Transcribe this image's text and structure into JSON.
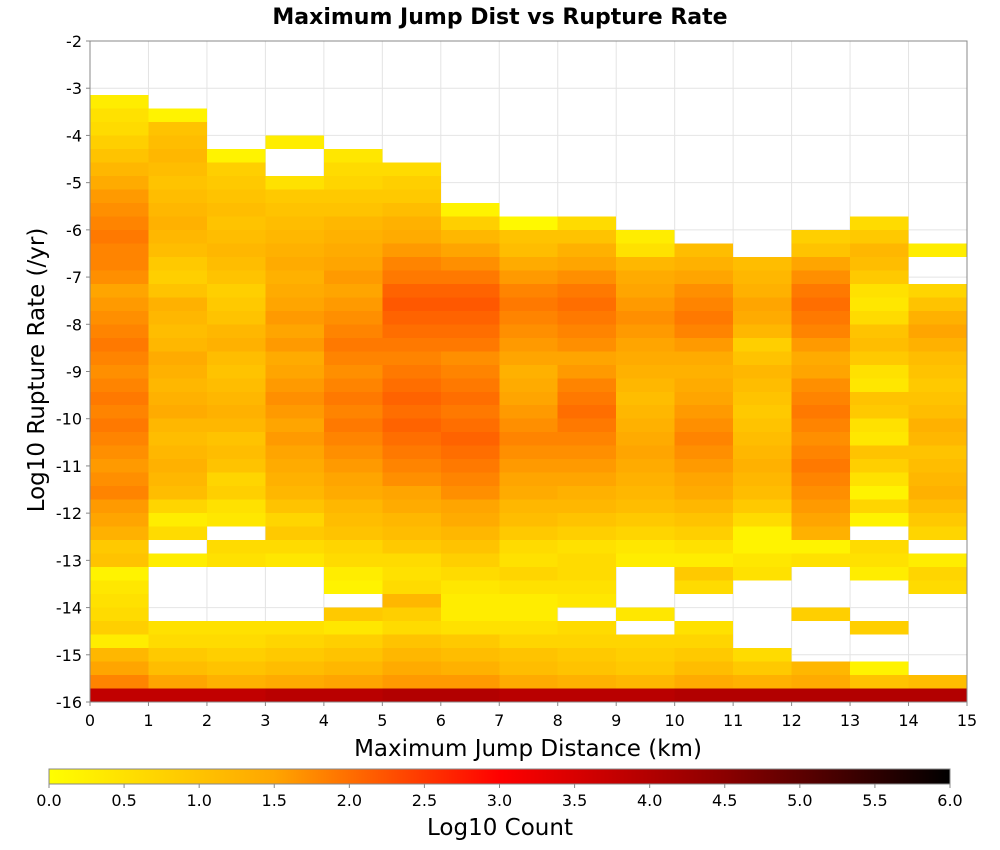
{
  "chart_data": {
    "type": "heatmap",
    "title": "Maximum Jump Dist vs Rupture Rate",
    "xlabel": "Maximum Jump Distance (km)",
    "ylabel": "Log10 Rupture Rate (/yr)",
    "xlim": [
      0,
      15
    ],
    "ylim": [
      -16,
      -2
    ],
    "x_ticks": [
      "0",
      "1",
      "2",
      "3",
      "4",
      "5",
      "6",
      "7",
      "8",
      "9",
      "10",
      "11",
      "12",
      "13",
      "14",
      "15"
    ],
    "y_ticks": [
      "-2",
      "-3",
      "-4",
      "-5",
      "-6",
      "-7",
      "-8",
      "-9",
      "-10",
      "-11",
      "-12",
      "-13",
      "-14",
      "-15",
      "-16"
    ],
    "x_bin_width": 1,
    "y_bin_width": 0.2857,
    "y_bin_start": -16,
    "grid": true,
    "colorbar": {
      "label": "Log10 Count",
      "range": [
        0,
        6
      ],
      "ticks": [
        "0.0",
        "0.5",
        "1.0",
        "1.5",
        "2.0",
        "2.5",
        "3.0",
        "3.5",
        "4.0",
        "4.5",
        "5.0",
        "5.5",
        "6.0"
      ],
      "colors": [
        "#ffff00",
        "#ffa500",
        "#ff0000",
        "#8b0000",
        "#000000"
      ],
      "placement": "bottom"
    },
    "columns": [
      {
        "x": 0,
        "values": [
          3.8,
          1.8,
          1.5,
          1.2,
          0.3,
          0.8,
          0.6,
          0.5,
          0.4,
          0.2,
          1.0,
          0.9,
          1.3,
          1.5,
          1.6,
          1.8,
          1.7,
          1.6,
          1.7,
          1.8,
          1.9,
          1.8,
          1.9,
          1.8,
          1.7,
          1.8,
          1.9,
          1.8,
          1.7,
          1.6,
          1.5,
          1.7,
          1.8,
          1.8,
          1.9,
          1.8,
          1.7,
          1.6,
          1.4,
          1.2,
          1.0,
          0.8,
          0.6,
          0.5,
          0.3
        ]
      },
      {
        "x": 1,
        "values": [
          3.8,
          1.5,
          1.1,
          0.9,
          0.6,
          0.5,
          null,
          null,
          null,
          null,
          0.3,
          null,
          0.6,
          0.3,
          0.7,
          1.1,
          1.2,
          1.3,
          1.2,
          1.1,
          1.2,
          1.4,
          1.3,
          1.2,
          1.3,
          1.4,
          1.2,
          1.1,
          1.2,
          1.3,
          1.0,
          0.8,
          0.9,
          1.1,
          1.2,
          1.3,
          1.2,
          1.1,
          1.0,
          1.1,
          1.2,
          1.1,
          1.0,
          0.2
        ]
      },
      {
        "x": 2,
        "values": [
          3.8,
          1.3,
          1.0,
          0.8,
          0.6,
          0.5,
          null,
          null,
          null,
          null,
          0.5,
          0.6,
          null,
          0.4,
          0.5,
          0.8,
          0.7,
          1.0,
          1.1,
          1.0,
          1.2,
          1.3,
          1.2,
          1.1,
          1.0,
          1.1,
          1.3,
          1.2,
          1.0,
          0.9,
          0.8,
          1.0,
          1.1,
          1.2,
          1.1,
          1.0,
          1.1,
          1.0,
          0.9,
          0.8,
          0.2
        ]
      },
      {
        "x": 3,
        "values": [
          3.9,
          1.4,
          1.1,
          0.9,
          0.7,
          0.5,
          null,
          null,
          null,
          null,
          0.4,
          0.6,
          0.9,
          0.7,
          1.0,
          1.2,
          1.3,
          1.4,
          1.5,
          1.6,
          1.5,
          1.6,
          1.7,
          1.6,
          1.5,
          1.4,
          1.6,
          1.5,
          1.6,
          1.5,
          1.4,
          1.3,
          1.4,
          1.3,
          1.2,
          1.1,
          1.0,
          0.9,
          0.5,
          null,
          null,
          0.3
        ]
      },
      {
        "x": 4,
        "values": [
          3.9,
          1.5,
          1.2,
          1.0,
          0.8,
          0.4,
          0.9,
          null,
          0.2,
          0.3,
          0.6,
          0.7,
          1.0,
          1.1,
          1.2,
          1.4,
          1.5,
          1.6,
          1.7,
          1.8,
          1.9,
          1.8,
          1.9,
          1.8,
          1.7,
          1.8,
          1.9,
          1.8,
          1.7,
          1.6,
          1.5,
          1.6,
          1.5,
          1.4,
          1.3,
          1.2,
          1.0,
          0.9,
          0.7,
          0.6,
          0.4
        ]
      },
      {
        "x": 5,
        "values": [
          4.0,
          1.6,
          1.4,
          1.2,
          1.0,
          0.6,
          0.8,
          1.2,
          0.6,
          0.5,
          0.6,
          0.9,
          1.1,
          1.2,
          1.4,
          1.5,
          1.7,
          1.8,
          1.9,
          2.0,
          2.1,
          2.0,
          2.1,
          2.0,
          1.9,
          1.8,
          1.9,
          2.0,
          2.1,
          2.2,
          2.1,
          1.9,
          1.8,
          1.6,
          1.4,
          1.3,
          1.1,
          0.9,
          0.8,
          0.6
        ]
      },
      {
        "x": 6,
        "values": [
          4.0,
          1.6,
          1.3,
          1.1,
          0.9,
          0.5,
          0.3,
          0.3,
          0.4,
          0.6,
          0.8,
          1.0,
          1.2,
          1.4,
          1.5,
          1.7,
          1.8,
          1.9,
          2.0,
          2.1,
          2.0,
          1.9,
          2.0,
          1.9,
          1.8,
          1.7,
          1.9,
          2.0,
          2.1,
          2.2,
          2.1,
          1.9,
          1.7,
          1.5,
          1.2,
          0.8,
          0.2
        ]
      },
      {
        "x": 7,
        "values": [
          3.9,
          1.4,
          1.1,
          1.0,
          0.7,
          0.5,
          0.3,
          0.3,
          0.5,
          0.7,
          0.5,
          0.6,
          0.9,
          1.1,
          1.2,
          1.4,
          1.5,
          1.6,
          1.7,
          1.8,
          1.7,
          1.6,
          1.5,
          1.4,
          1.3,
          1.5,
          1.6,
          1.7,
          1.8,
          1.9,
          1.8,
          1.6,
          1.4,
          1.1,
          1.0,
          0.1
        ]
      },
      {
        "x": 8,
        "values": [
          3.9,
          1.3,
          1.0,
          0.9,
          0.7,
          0.6,
          null,
          0.4,
          0.5,
          0.6,
          0.6,
          0.5,
          0.8,
          1.0,
          1.2,
          1.3,
          1.5,
          1.6,
          1.7,
          1.8,
          1.9,
          2.0,
          1.9,
          1.8,
          1.6,
          1.5,
          1.7,
          1.8,
          1.9,
          2.0,
          1.9,
          1.7,
          1.5,
          1.3,
          1.0,
          0.6
        ]
      },
      {
        "x": 9,
        "values": [
          3.9,
          1.2,
          0.9,
          0.8,
          0.7,
          null,
          0.4,
          null,
          null,
          null,
          0.3,
          0.4,
          0.7,
          0.9,
          1.1,
          1.2,
          1.3,
          1.4,
          1.5,
          1.4,
          1.3,
          1.2,
          1.1,
          1.2,
          1.3,
          1.4,
          1.5,
          1.6,
          1.7,
          1.6,
          1.5,
          1.4,
          1.2,
          0.5,
          0.3
        ]
      },
      {
        "x": 10,
        "values": [
          4.0,
          1.4,
          1.1,
          0.9,
          0.7,
          0.5,
          null,
          null,
          0.6,
          0.9,
          0.3,
          0.5,
          0.8,
          1.0,
          1.2,
          1.4,
          1.5,
          1.6,
          1.7,
          1.8,
          1.7,
          1.6,
          1.5,
          1.4,
          1.3,
          1.4,
          1.6,
          1.8,
          1.9,
          1.8,
          1.7,
          1.5,
          1.3,
          1.1
        ]
      },
      {
        "x": 11,
        "values": [
          4.0,
          1.3,
          0.9,
          0.6,
          null,
          null,
          null,
          null,
          null,
          0.5,
          0.4,
          0.2,
          0.2,
          0.6,
          0.9,
          1.1,
          1.2,
          1.3,
          1.2,
          1.1,
          1.0,
          0.9,
          1.0,
          1.1,
          1.2,
          1.0,
          0.8,
          1.2,
          1.4,
          1.5,
          1.3,
          1.2,
          1.1
        ]
      },
      {
        "x": 12,
        "values": [
          4.0,
          1.4,
          1.2,
          null,
          null,
          null,
          0.8,
          null,
          null,
          null,
          0.5,
          0.2,
          1.3,
          1.5,
          1.6,
          1.7,
          1.8,
          1.9,
          1.8,
          1.7,
          1.8,
          1.9,
          1.8,
          1.7,
          1.5,
          1.4,
          1.6,
          1.8,
          1.9,
          2.0,
          1.9,
          1.7,
          1.5,
          1.0,
          0.8
        ]
      },
      {
        "x": 13,
        "values": [
          4.0,
          1.0,
          0.2,
          null,
          null,
          0.8,
          null,
          null,
          null,
          0.3,
          0.5,
          0.6,
          null,
          0.2,
          0.7,
          0.2,
          0.5,
          0.8,
          1.0,
          0.4,
          0.5,
          0.9,
          1.0,
          0.4,
          0.5,
          0.9,
          1.1,
          1.0,
          0.6,
          0.4,
          0.5,
          0.9,
          1.1,
          1.2,
          0.9,
          0.6
        ]
      },
      {
        "x": 14,
        "values": [
          4.0,
          1.1,
          null,
          null,
          null,
          null,
          null,
          null,
          0.6,
          0.7,
          0.3,
          null,
          0.7,
          0.9,
          1.1,
          1.3,
          1.2,
          1.1,
          1.0,
          1.2,
          1.3,
          1.1,
          1.0,
          0.9,
          1.0,
          1.1,
          1.3,
          1.5,
          1.3,
          1.0,
          0.7,
          null,
          null,
          0.3
        ]
      }
    ]
  }
}
